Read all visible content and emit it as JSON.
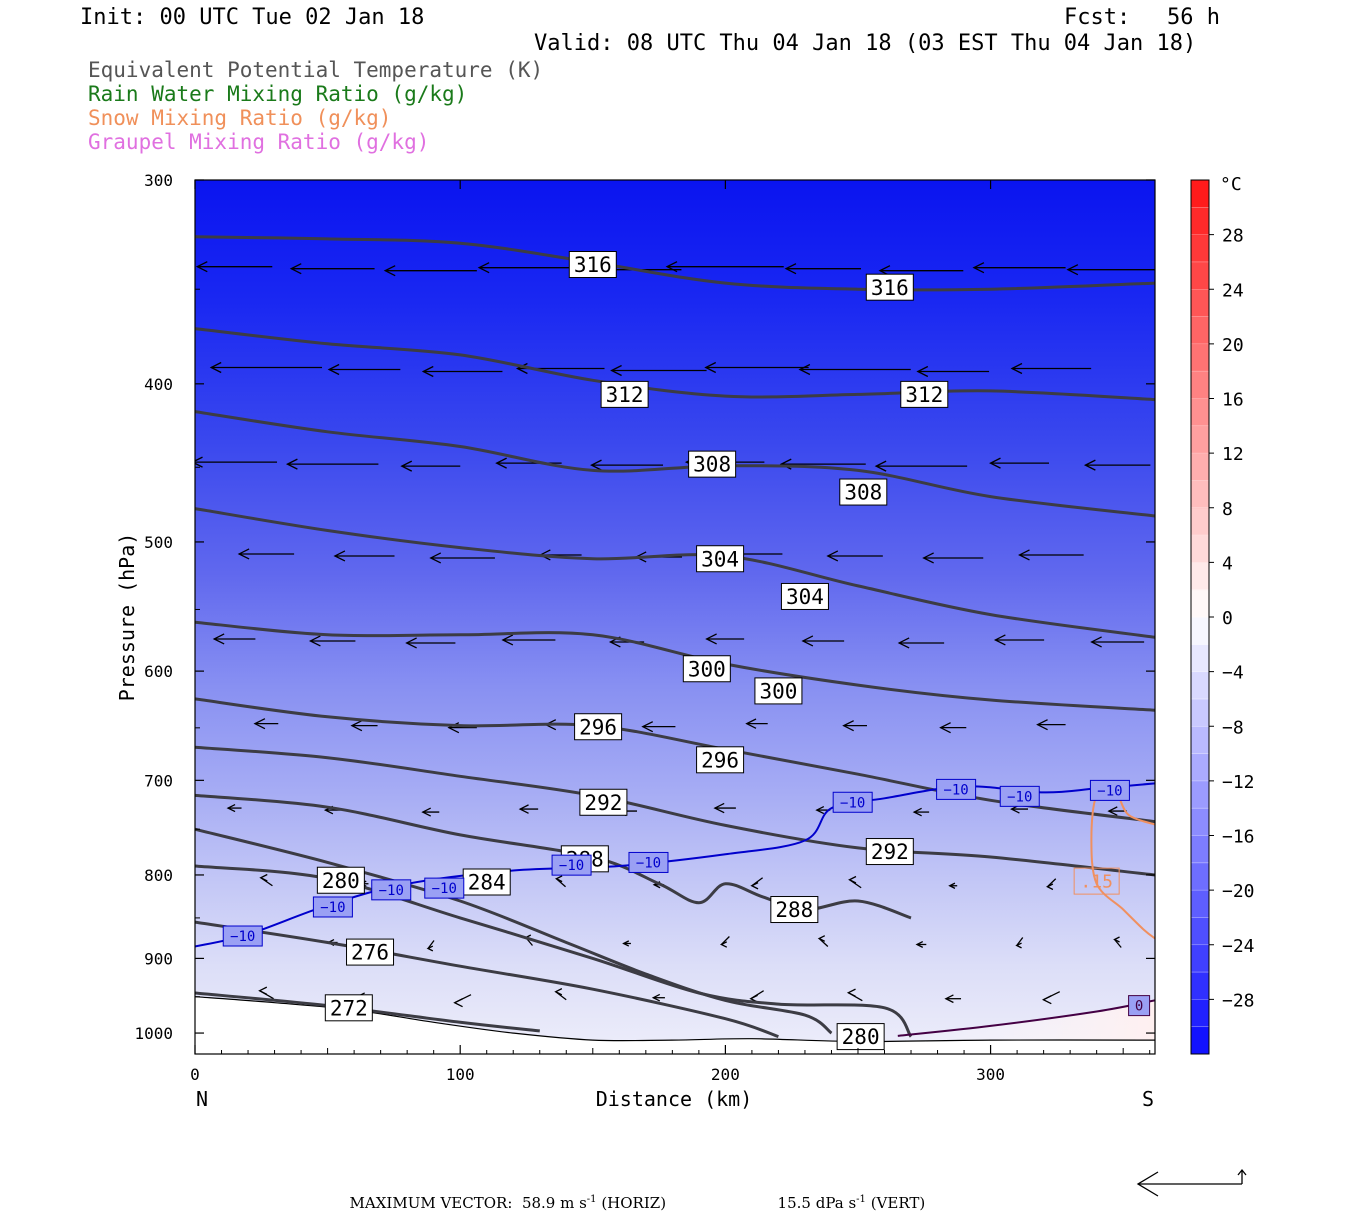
{
  "header": {
    "init": "Init: 00 UTC Tue 02 Jan 18",
    "fcst_label": "Fcst:",
    "fcst_value": "56 h",
    "valid": "Valid: 08 UTC Thu 04 Jan 18 (03 EST Thu 04 Jan 18)"
  },
  "legend": [
    {
      "label": "Equivalent Potential Temperature (K)",
      "color": "#555555"
    },
    {
      "label": "Rain Water Mixing Ratio (g/kg)",
      "color": "#1a7a1a"
    },
    {
      "label": "Snow Mixing Ratio (g/kg)",
      "color": "#f0905a"
    },
    {
      "label": "Graupel Mixing Ratio (g/kg)",
      "color": "#e070e0"
    }
  ],
  "footer": {
    "max_vector_label": "MAXIMUM VECTOR:",
    "horiz_value": "58.9 m s",
    "horiz_unit": "(HORIZ)",
    "vert_value": "15.5 dPa s",
    "vert_unit": "(VERT)",
    "exponent": "-1"
  },
  "chart_data": {
    "type": "cross-section",
    "xlabel": "Distance (km)",
    "ylabel": "Pressure (hPa)",
    "xlim": [
      0,
      362
    ],
    "ylim": [
      300,
      1030
    ],
    "y_scale": "log-pressure",
    "x_ticks": [
      0,
      100,
      200,
      300
    ],
    "y_ticks": [
      300,
      400,
      500,
      600,
      700,
      800,
      900,
      1000
    ],
    "x_end_labels": {
      "left": "N",
      "right": "S"
    },
    "colorbar": {
      "unit": "°C",
      "range": [
        -32,
        32
      ],
      "tick_labels": [
        "28",
        "24",
        "20",
        "16",
        "12",
        "8",
        "4",
        "0",
        "−4",
        "−8",
        "−12",
        "−16",
        "−20",
        "−24",
        "−28"
      ],
      "tick_values": [
        28,
        24,
        20,
        16,
        12,
        8,
        4,
        0,
        -4,
        -8,
        -12,
        -16,
        -20,
        -24,
        -28
      ]
    },
    "theta_e_contours": [
      {
        "label": "316",
        "points": [
          [
            0,
            325
          ],
          [
            50,
            326
          ],
          [
            100,
            328
          ],
          [
            150,
            337
          ],
          [
            200,
            347
          ],
          [
            250,
            350
          ],
          [
            300,
            350
          ],
          [
            362,
            347
          ]
        ],
        "label_positions": [
          [
            150,
            338
          ],
          [
            262,
            349
          ]
        ]
      },
      {
        "label": "312",
        "points": [
          [
            0,
            370
          ],
          [
            50,
            378
          ],
          [
            100,
            384
          ],
          [
            150,
            398
          ],
          [
            200,
            407
          ],
          [
            250,
            406
          ],
          [
            300,
            404
          ],
          [
            362,
            409
          ]
        ],
        "label_positions": [
          [
            162,
            406
          ],
          [
            275,
            406
          ]
        ]
      },
      {
        "label": "308",
        "points": [
          [
            0,
            416
          ],
          [
            50,
            428
          ],
          [
            100,
            437
          ],
          [
            150,
            452
          ],
          [
            200,
            449
          ],
          [
            250,
            452
          ],
          [
            300,
            469
          ],
          [
            362,
            482
          ]
        ],
        "label_positions": [
          [
            195,
            448
          ],
          [
            252,
            466
          ]
        ]
      },
      {
        "label": "304",
        "points": [
          [
            0,
            477
          ],
          [
            50,
            492
          ],
          [
            100,
            504
          ],
          [
            150,
            512
          ],
          [
            200,
            510
          ],
          [
            250,
            532
          ],
          [
            300,
            554
          ],
          [
            362,
            572
          ]
        ],
        "label_positions": [
          [
            198,
            512
          ],
          [
            230,
            540
          ]
        ]
      },
      {
        "label": "300",
        "points": [
          [
            0,
            560
          ],
          [
            50,
            570
          ],
          [
            100,
            570
          ],
          [
            150,
            570
          ],
          [
            200,
            594
          ],
          [
            250,
            612
          ],
          [
            300,
            625
          ],
          [
            362,
            634
          ]
        ],
        "label_positions": [
          [
            193,
            598
          ],
          [
            220,
            617
          ]
        ]
      },
      {
        "label": "296",
        "points": [
          [
            0,
            624
          ],
          [
            50,
            640
          ],
          [
            100,
            648
          ],
          [
            150,
            648
          ],
          [
            200,
            670
          ],
          [
            250,
            694
          ],
          [
            300,
            720
          ],
          [
            362,
            742
          ]
        ],
        "label_positions": [
          [
            152,
            649
          ],
          [
            198,
            680
          ]
        ]
      },
      {
        "label": "292",
        "points": [
          [
            0,
            668
          ],
          [
            50,
            678
          ],
          [
            100,
            696
          ],
          [
            150,
            715
          ],
          [
            200,
            746
          ],
          [
            250,
            770
          ],
          [
            300,
            780
          ],
          [
            362,
            800
          ]
        ],
        "label_positions": [
          [
            154,
            722
          ],
          [
            262,
            774
          ]
        ]
      },
      {
        "label": "288",
        "points": [
          [
            0,
            715
          ],
          [
            50,
            727
          ],
          [
            100,
            756
          ],
          [
            150,
            780
          ],
          [
            175,
            810
          ],
          [
            190,
            832
          ],
          [
            200,
            810
          ],
          [
            214,
            825
          ],
          [
            230,
            840
          ],
          [
            250,
            830
          ],
          [
            270,
            850
          ]
        ],
        "label_positions": [
          [
            147,
            782
          ],
          [
            226,
            840
          ]
        ]
      },
      {
        "label": "284",
        "points": [
          [
            0,
            750
          ],
          [
            50,
            786
          ],
          [
            100,
            830
          ],
          [
            140,
            880
          ],
          [
            170,
            920
          ],
          [
            200,
            955
          ],
          [
            230,
            975
          ],
          [
            240,
            1000
          ]
        ],
        "label_positions": [
          [
            110,
            808
          ]
        ]
      },
      {
        "label": "280",
        "points": [
          [
            0,
            790
          ],
          [
            50,
            804
          ],
          [
            100,
            850
          ],
          [
            150,
            900
          ],
          [
            190,
            945
          ],
          [
            220,
            960
          ],
          [
            260,
            965
          ],
          [
            270,
            1005
          ]
        ],
        "label_positions": [
          [
            55,
            806
          ],
          [
            251,
            1005
          ]
        ]
      },
      {
        "label": "276",
        "points": [
          [
            0,
            855
          ],
          [
            50,
            880
          ],
          [
            100,
            910
          ],
          [
            150,
            940
          ],
          [
            200,
            980
          ],
          [
            220,
            1005
          ]
        ],
        "label_positions": [
          [
            66,
            892
          ]
        ]
      },
      {
        "label": "272",
        "points": [
          [
            0,
            945
          ],
          [
            50,
            962
          ],
          [
            100,
            985
          ],
          [
            130,
            997
          ]
        ],
        "label_positions": [
          [
            58,
            965
          ]
        ]
      }
    ],
    "temperature_contours": [
      {
        "label": "−10",
        "color": "#0000cc",
        "points": [
          [
            0,
            885
          ],
          [
            20,
            870
          ],
          [
            50,
            835
          ],
          [
            80,
            810
          ],
          [
            120,
            795
          ],
          [
            160,
            790
          ],
          [
            200,
            777
          ],
          [
            230,
            762
          ],
          [
            240,
            728
          ],
          [
            260,
            718
          ],
          [
            290,
            706
          ],
          [
            320,
            712
          ],
          [
            340,
            708
          ],
          [
            362,
            703
          ]
        ],
        "label_positions": [
          [
            18,
            872
          ],
          [
            52,
            837
          ],
          [
            74,
            817
          ],
          [
            94,
            815
          ],
          [
            142,
            789
          ],
          [
            171,
            786
          ],
          [
            248,
            722
          ],
          [
            287,
            709
          ],
          [
            311,
            716
          ],
          [
            345,
            710
          ]
        ]
      },
      {
        "label": "0",
        "color": "#440044",
        "points": [
          [
            265,
            1004
          ],
          [
            300,
            990
          ],
          [
            340,
            970
          ],
          [
            362,
            955
          ]
        ],
        "label_positions": [
          [
            356,
            962
          ]
        ]
      }
    ],
    "snow_contours": [
      {
        "label": ".15",
        "color": "#f09060",
        "points": [
          [
            362,
            745
          ],
          [
            352,
            735
          ],
          [
            347,
            712
          ],
          [
            340,
            715
          ],
          [
            338,
            760
          ],
          [
            340,
            810
          ],
          [
            350,
            840
          ],
          [
            358,
            865
          ],
          [
            362,
            875
          ]
        ],
        "label_positions": [
          [
            340,
            807
          ]
        ]
      }
    ],
    "terrain_pressure_surface": [
      [
        0,
        950
      ],
      [
        30,
        958
      ],
      [
        60,
        968
      ],
      [
        90,
        985
      ],
      [
        120,
        1000
      ],
      [
        150,
        1010
      ],
      [
        180,
        1010
      ],
      [
        210,
        1008
      ],
      [
        250,
        1012
      ],
      [
        300,
        1010
      ],
      [
        362,
        1010
      ]
    ],
    "max_vector": {
      "horizontal_m_s": 58.9,
      "vertical_dPa_s": 15.5
    }
  }
}
